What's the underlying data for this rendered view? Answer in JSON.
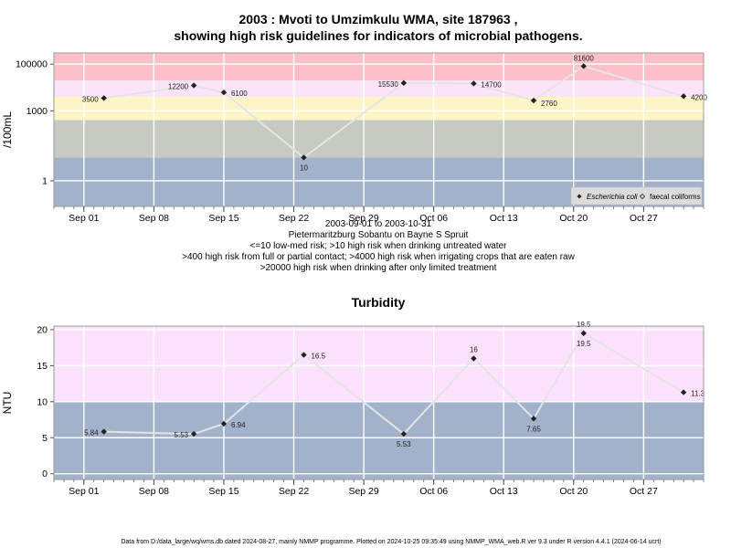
{
  "chart_data": [
    {
      "type": "line",
      "title": "2003 : Mvoti to Umzimkulu WMA, site 187963 ,",
      "subtitle": "showing high risk guidelines for indicators of microbial pathogens.",
      "ylabel": "/100mL",
      "y_scale": "log",
      "ylim": [
        0.08,
        300000
      ],
      "x_ticks": [
        "Sep 01",
        "Sep 08",
        "Sep 15",
        "Sep 22",
        "Sep 29",
        "Oct 06",
        "Oct 13",
        "Oct 20",
        "Oct 27"
      ],
      "y_ticks": [
        1,
        1000,
        100000
      ],
      "y_tick_labels": [
        "1",
        "1000",
        "100000"
      ],
      "xlim": [
        "2003-08-29",
        "2003-11-02"
      ],
      "grid": true,
      "legend_placement": "bottom-right",
      "series": [
        {
          "name": "Escherichia coli",
          "x": [
            "2003-09-03",
            "2003-09-12",
            "2003-09-15",
            "2003-09-23",
            "2003-10-03",
            "2003-10-10",
            "2003-10-16",
            "2003-10-21",
            "2003-10-31"
          ],
          "values": [
            3500,
            12200,
            6100,
            10,
            15530,
            14700,
            2760,
            81600,
            4200
          ],
          "labels": [
            "3500",
            "12200",
            "6100",
            "10",
            "15530",
            "14700",
            "2760",
            "81600",
            "4200"
          ]
        },
        {
          "name": "faecal coliforms",
          "x": [],
          "values": []
        }
      ],
      "risk_bands": [
        {
          "from": 0.08,
          "to": 10,
          "color": "#a2b2cb"
        },
        {
          "from": 10,
          "to": 400,
          "color": "#c5cbc3"
        },
        {
          "from": 400,
          "to": 4000,
          "color": "#fdf5c6"
        },
        {
          "from": 4000,
          "to": 20000,
          "color": "#fbe4f7"
        },
        {
          "from": 20000,
          "to": 300000,
          "color": "#fdbfc8"
        }
      ],
      "notes": [
        "2003-09-01 to 2003-10-31",
        "Pietermaritzburg Sobantu on Bayne S Spruit",
        "<=10 low-med risk; >10 high risk when drinking untreated water",
        ">400 high risk from full or partial contact; >4000 high risk when irrigating crops that are eaten raw",
        ">20000 high risk when drinking after only limited treatment"
      ]
    },
    {
      "type": "line",
      "title": "Turbidity",
      "ylabel": "NTU",
      "ylim": [
        -0.8,
        20.5
      ],
      "y_ticks": [
        0,
        5,
        10,
        15,
        20
      ],
      "x_ticks": [
        "Sep 01",
        "Sep 08",
        "Sep 15",
        "Sep 22",
        "Sep 29",
        "Oct 06",
        "Oct 13",
        "Oct 20",
        "Oct 27"
      ],
      "xlim": [
        "2003-08-29",
        "2003-11-02"
      ],
      "grid": true,
      "series": [
        {
          "name": "",
          "x": [
            "2003-09-03",
            "2003-09-12",
            "2003-09-15",
            "2003-09-23",
            "2003-10-03",
            "2003-10-10",
            "2003-10-16",
            "2003-10-21",
            "2003-10-31"
          ],
          "values": [
            5.84,
            5.53,
            6.94,
            16.5,
            5.53,
            16,
            7.65,
            19.5,
            11.3
          ],
          "labels": [
            "5.84",
            "5.53",
            "6.94",
            "16.5",
            "5.53",
            "16",
            "7.65",
            "19.5",
            "11.3"
          ]
        }
      ],
      "extra_labels": [
        {
          "x": "2003-10-21",
          "value": 19.5,
          "label": "19.5"
        }
      ],
      "risk_bands": [
        {
          "from": -0.8,
          "to": 10,
          "color": "#a2b2cb"
        },
        {
          "from": 10,
          "to": 20.5,
          "color": "#fbe1fb"
        }
      ]
    }
  ],
  "footer": "Data from D:/data_large/wq/wms.db dated 2024-08-27, mainly NMMP programme. Plotted on 2024-10-25 09:35:49 using NMMP_WMA_web.R ver 9.3 under R version 4.4.1 (2024-06-14 ucrt)"
}
